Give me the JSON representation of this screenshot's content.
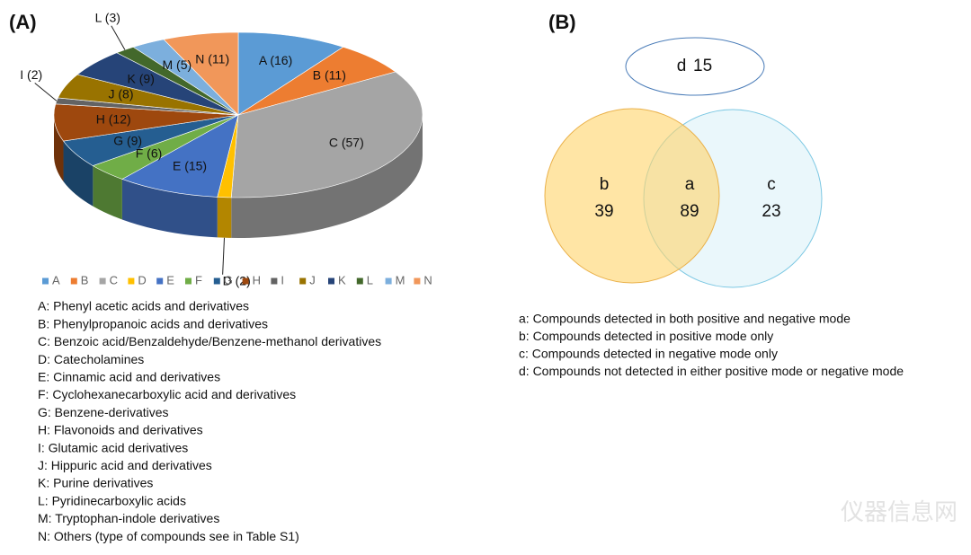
{
  "chart_data": [
    {
      "type": "pie",
      "panel_label": "(A)",
      "categories": [
        "A",
        "B",
        "C",
        "D",
        "E",
        "F",
        "G",
        "H",
        "I",
        "J",
        "K",
        "L",
        "M",
        "N"
      ],
      "values": [
        16,
        11,
        57,
        2,
        15,
        6,
        9,
        12,
        2,
        8,
        9,
        3,
        5,
        11
      ],
      "value_labels": [
        "A (16)",
        "B (11)",
        "C (57)",
        "D (2)",
        "E (15)",
        "F (6)",
        "G (9)",
        "H (12)",
        "I (2)",
        "J (8)",
        "K (9)",
        "L (3)",
        "M (5)",
        "N (11)"
      ],
      "colors": [
        "#5b9bd5",
        "#ed7d31",
        "#a5a5a5",
        "#ffc000",
        "#4472c4",
        "#70ad47",
        "#255e91",
        "#9e480e",
        "#636363",
        "#997300",
        "#264478",
        "#43682b",
        "#7cafdd",
        "#f1975a"
      ],
      "legend": true,
      "legend_position": "bottom",
      "descriptions": [
        "A: Phenyl acetic acids and derivatives",
        "B: Phenylpropanoic acids and derivatives",
        "C: Benzoic acid/Benzaldehyde/Benzene-methanol derivatives",
        "D: Catecholamines",
        "E: Cinnamic acid and derivatives",
        "F: Cyclohexanecarboxylic acid and derivatives",
        "G: Benzene-derivatives",
        "H: Flavonoids and derivatives",
        "I:  Glutamic acid derivatives",
        "J: Hippuric acid and derivatives",
        "K: Purine derivatives",
        "L: Pyridinecarboxylic acids",
        "M: Tryptophan-indole derivatives",
        "N: Others (type of compounds see in Table S1)"
      ]
    },
    {
      "type": "venn",
      "panel_label": "(B)",
      "sets": [
        {
          "label": "a",
          "value": 89
        },
        {
          "label": "b",
          "value": 39
        },
        {
          "label": "c",
          "value": 23
        },
        {
          "label": "d",
          "value": 15
        }
      ],
      "descriptions": [
        "a: Compounds detected in both positive and negative mode",
        "b: Compounds detected in positive mode only",
        "c: Compounds detected in negative mode only",
        "d: Compounds not detected in either positive mode or negative mode"
      ]
    }
  ],
  "watermark": "仪器信息网"
}
